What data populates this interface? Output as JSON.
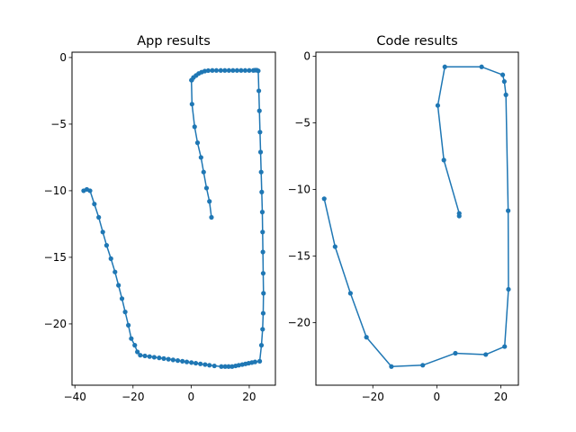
{
  "chart_data": [
    {
      "type": "line",
      "title": "App results",
      "xlabel": "",
      "ylabel": "",
      "xlim": [
        -41,
        29
      ],
      "ylim": [
        -24.6,
        0.4
      ],
      "xticks": [
        -40,
        -20,
        0,
        20
      ],
      "yticks": [
        0,
        -5,
        -10,
        -15,
        -20
      ],
      "grid": false,
      "color": "#1f77b4",
      "marker": "dot",
      "series": [
        {
          "x": [
            7,
            6.3,
            5.3,
            4.3,
            3.4,
            2.2,
            1.2,
            0.3,
            0.1,
            0.2,
            0.8,
            1.7,
            2.6,
            3.6,
            4.7,
            5.9,
            7.3,
            8.7,
            10.2,
            11.6,
            13.0,
            14.4,
            15.8,
            17.2,
            18.6,
            20.0,
            21.4,
            22.0,
            22.6,
            23.1,
            23.3,
            23.5,
            23.7,
            23.9,
            24.1,
            24.3,
            24.5,
            24.6,
            24.7,
            24.8,
            24.9,
            24.8,
            24.6,
            24.2,
            23.6,
            22.0,
            20.9,
            19.8,
            18.7,
            17.6,
            16.4,
            15.3,
            14.1,
            12.9,
            11.7,
            10.4,
            8.0,
            6.3,
            4.8,
            3.2,
            1.6,
            0.1,
            -1.5,
            -3.0,
            -4.6,
            -6.2,
            -7.8,
            -9.4,
            -11.0,
            -12.7,
            -14.3,
            -15.9,
            -17.5,
            -18.5,
            -19.4,
            -20.6,
            -21.6,
            -22.7,
            -23.8,
            -25.0,
            -26.2,
            -27.6,
            -29.1,
            -30.4,
            -31.8,
            -33.3,
            -34.8,
            -35.9,
            -37.0
          ],
          "y": [
            -12.0,
            -10.8,
            -9.8,
            -8.6,
            -7.5,
            -6.4,
            -5.2,
            -3.5,
            -1.7,
            -1.7,
            -1.5,
            -1.35,
            -1.2,
            -1.1,
            -1.02,
            -0.98,
            -0.97,
            -0.97,
            -0.97,
            -0.97,
            -0.97,
            -0.97,
            -0.97,
            -0.97,
            -0.97,
            -0.97,
            -0.97,
            -0.95,
            -0.95,
            -1.0,
            -2.5,
            -4.0,
            -5.6,
            -7.1,
            -8.6,
            -10.1,
            -11.6,
            -13.1,
            -14.6,
            -16.2,
            -17.7,
            -19.2,
            -20.4,
            -21.6,
            -22.8,
            -22.85,
            -22.9,
            -22.95,
            -23.0,
            -23.05,
            -23.1,
            -23.15,
            -23.2,
            -23.2,
            -23.2,
            -23.2,
            -23.15,
            -23.1,
            -23.05,
            -23.0,
            -22.95,
            -22.9,
            -22.85,
            -22.8,
            -22.75,
            -22.7,
            -22.65,
            -22.6,
            -22.55,
            -22.5,
            -22.45,
            -22.4,
            -22.35,
            -22.1,
            -21.6,
            -21.1,
            -20.1,
            -19.1,
            -18.1,
            -17.1,
            -16.1,
            -15.1,
            -14.1,
            -13.1,
            -12.0,
            -11.0,
            -10.0,
            -9.9,
            -10.0
          ]
        }
      ]
    },
    {
      "type": "line",
      "title": "Code results",
      "xlabel": "",
      "ylabel": "",
      "xlim": [
        -37.8,
        25.5
      ],
      "ylim": [
        -24.7,
        0.3
      ],
      "xticks": [
        -20,
        0,
        20
      ],
      "yticks": [
        0,
        -5,
        -10,
        -15,
        -20
      ],
      "grid": false,
      "color": "#1f77b4",
      "marker": "dot",
      "series": [
        {
          "x": [
            7.0,
            7.0,
            2.2,
            0.3,
            2.5,
            14.0,
            20.6,
            21.1,
            21.6,
            22.3,
            22.4,
            21.2,
            15.3,
            5.8,
            -4.4,
            -14.2,
            -22.0,
            -27.0,
            -31.8,
            -35.2
          ],
          "y": [
            -12.0,
            -11.8,
            -7.8,
            -3.7,
            -0.8,
            -0.8,
            -1.4,
            -1.9,
            -2.9,
            -11.6,
            -17.5,
            -21.8,
            -22.4,
            -22.3,
            -23.2,
            -23.3,
            -21.1,
            -17.8,
            -14.3,
            -10.7
          ]
        }
      ]
    }
  ]
}
